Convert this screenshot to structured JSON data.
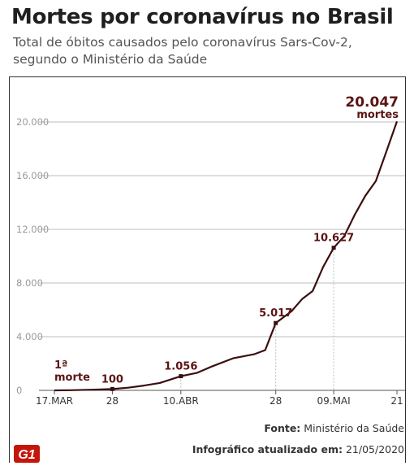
{
  "header": {
    "title": "Mortes por coronavírus no Brasil",
    "subtitle": "Total de óbitos causados pelo coronavírus Sars-Cov-2, segundo o Ministério da Saúde"
  },
  "footer": {
    "source_label": "Fonte:",
    "source_value": "Ministério da Saúde",
    "updated_label": "Infográfico atualizado em:",
    "updated_value": "21/05/2020",
    "logo_text": "G1"
  },
  "colors": {
    "line": "#3a0f0f",
    "annotation": "#5b1414",
    "grid": "#bdbdbd",
    "tick_label": "#9a9a9a",
    "logo": "#c4170c"
  },
  "chart_data": {
    "type": "line",
    "title": "",
    "xlabel": "",
    "ylabel": "",
    "ylim": [
      0,
      20000
    ],
    "yticks": [
      0,
      4000,
      8000,
      12000,
      16000,
      20000
    ],
    "ytick_labels": [
      "0",
      "4.000",
      "8.000",
      "12.000",
      "16.000",
      "20.000"
    ],
    "xticks": [
      {
        "date": "2020-03-17",
        "label": "17.MAR"
      },
      {
        "date": "2020-03-28",
        "label": "28"
      },
      {
        "date": "2020-04-10",
        "label": "10.ABR"
      },
      {
        "date": "2020-04-28",
        "label": "28"
      },
      {
        "date": "2020-05-09",
        "label": "09.MAI"
      },
      {
        "date": "2020-05-21",
        "label": "21"
      }
    ],
    "grid": true,
    "series": [
      {
        "points": [
          [
            "2020-03-17",
            1
          ],
          [
            "2020-03-20",
            11
          ],
          [
            "2020-03-24",
            46
          ],
          [
            "2020-03-28",
            100
          ],
          [
            "2020-03-31",
            200
          ],
          [
            "2020-04-03",
            360
          ],
          [
            "2020-04-06",
            550
          ],
          [
            "2020-04-10",
            1056
          ],
          [
            "2020-04-13",
            1300
          ],
          [
            "2020-04-16",
            1800
          ],
          [
            "2020-04-20",
            2400
          ],
          [
            "2020-04-24",
            2700
          ],
          [
            "2020-04-26",
            3000
          ],
          [
            "2020-04-28",
            5017
          ],
          [
            "2020-05-01",
            5900
          ],
          [
            "2020-05-03",
            6800
          ],
          [
            "2020-05-05",
            7400
          ],
          [
            "2020-05-07",
            9200
          ],
          [
            "2020-05-09",
            10627
          ],
          [
            "2020-05-11",
            11500
          ],
          [
            "2020-05-13",
            13100
          ],
          [
            "2020-05-15",
            14500
          ],
          [
            "2020-05-17",
            15600
          ],
          [
            "2020-05-19",
            17800
          ],
          [
            "2020-05-21",
            20047
          ]
        ]
      }
    ],
    "markers": [
      {
        "date": "2020-03-28",
        "value": 100,
        "label": "100"
      },
      {
        "date": "2020-04-10",
        "value": 1056,
        "label": "1.056"
      },
      {
        "date": "2020-04-28",
        "value": 5017,
        "label": "5.017"
      },
      {
        "date": "2020-05-09",
        "value": 10627,
        "label": "10.627"
      }
    ],
    "annotations": [
      {
        "date": "2020-03-17",
        "value": 1,
        "label_top": "1ª",
        "label_bottom": "morte"
      },
      {
        "date": "2020-05-21",
        "value": 20047,
        "label_top": "20.047",
        "label_bottom": "mortes"
      }
    ]
  }
}
